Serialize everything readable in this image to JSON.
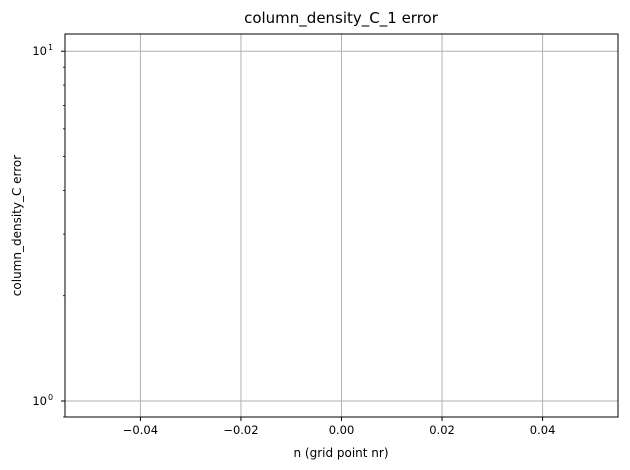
{
  "chart_data": {
    "type": "line",
    "title": "column_density_C_1 error",
    "xlabel": "n (grid point nr)",
    "ylabel": "column_density_C error",
    "xlim": [
      -0.055,
      0.055
    ],
    "x_ticks": [
      -0.04,
      -0.02,
      0.0,
      0.02,
      0.04
    ],
    "x_tick_labels": [
      "−0.04",
      "−0.02",
      "0.00",
      "0.02",
      "0.04"
    ],
    "yscale": "log",
    "ylim": [
      0.9,
      11.2
    ],
    "y_ticks": [
      1,
      10
    ],
    "y_tick_labels": [
      {
        "base": "10",
        "exp": "0"
      },
      {
        "base": "10",
        "exp": "1"
      }
    ],
    "y_minor_ticks": [
      0.9,
      2,
      3,
      4,
      5,
      6,
      7,
      8,
      9
    ],
    "grid": true,
    "series": [
      {
        "x": [],
        "y": []
      }
    ],
    "colors": {
      "grid": "#b0b0b0",
      "axes": "#000000",
      "background": "#ffffff"
    }
  }
}
